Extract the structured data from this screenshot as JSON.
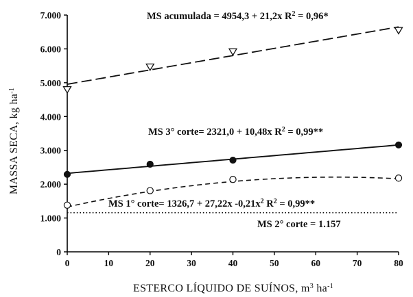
{
  "chart_data": {
    "type": "scatter",
    "xlabel": "ESTERCO LÍQUIDO DE SUÍNOS, m",
    "xlabel_sup1": "3",
    "xlabel_mid": " ha",
    "xlabel_sup2": "-1",
    "ylabel": "MASSA SECA, kg ha",
    "ylabel_sup": "-1",
    "xlim": [
      0,
      80
    ],
    "ylim": [
      0,
      7000
    ],
    "xticks": [
      0,
      10,
      20,
      30,
      40,
      50,
      60,
      70,
      80
    ],
    "xtick_labels": [
      "0",
      "10",
      "20",
      "30",
      "40",
      "50",
      "60",
      "70",
      "80"
    ],
    "yticks": [
      0,
      1000,
      2000,
      3000,
      4000,
      5000,
      6000,
      7000
    ],
    "ytick_labels": [
      "0",
      "1.000",
      "2.000",
      "3.000",
      "4.000",
      "5.000",
      "6.000",
      "7.000"
    ],
    "grid": false,
    "series": [
      {
        "name": "MS acumulada",
        "marker": "triangle-down-open",
        "x": [
          0,
          20,
          40,
          80
        ],
        "y": [
          4800,
          5470,
          5920,
          6550
        ],
        "fit": {
          "type": "linear",
          "a": 4954.3,
          "b": 21.2,
          "style": "long-dash"
        },
        "equation": "MS acumulada = 4954,3 + 21,2x   R",
        "r2": "2",
        "r2_value": " = 0,96*"
      },
      {
        "name": "MS 3° corte",
        "marker": "circle-filled",
        "x": [
          0,
          20,
          40,
          80
        ],
        "y": [
          2290,
          2590,
          2710,
          3160
        ],
        "fit": {
          "type": "linear",
          "a": 2321.0,
          "b": 10.48,
          "style": "solid"
        },
        "equation": "MS 3° corte= 2321,0 + 10,48x    R",
        "r2": "2",
        "r2_value": " = 0,99**"
      },
      {
        "name": "MS 1° corte",
        "marker": "circle-open",
        "x": [
          0,
          20,
          40,
          80
        ],
        "y": [
          1380,
          1810,
          2140,
          2180
        ],
        "fit": {
          "type": "quadratic",
          "a": 1326.7,
          "b": 27.22,
          "c": -0.21,
          "style": "short-dash"
        },
        "equation": "MS 1° corte= 1326,7 + 27,22x -0,21x",
        "eq_sup": "2",
        "r2_prefix": "   R",
        "r2": "2",
        "r2_value": " = 0,99**"
      },
      {
        "name": "MS 2° corte",
        "marker": "none",
        "fit": {
          "type": "constant",
          "a": 1157,
          "style": "dotted"
        },
        "equation": "MS 2° corte =  1.157"
      }
    ]
  }
}
